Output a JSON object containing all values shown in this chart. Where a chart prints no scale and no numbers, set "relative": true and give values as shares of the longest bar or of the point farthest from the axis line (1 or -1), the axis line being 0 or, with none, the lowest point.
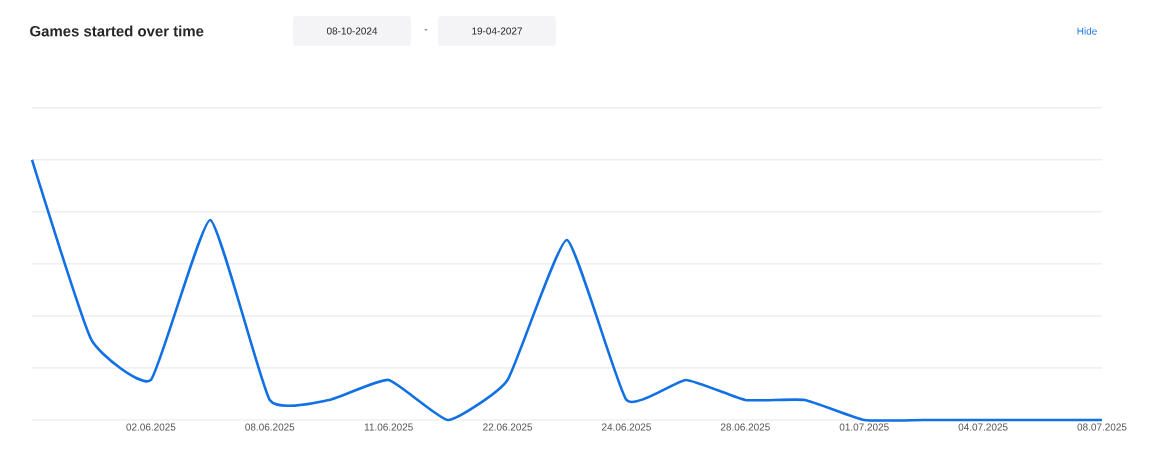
{
  "chart_data": {
    "type": "line",
    "title": "Games started over time",
    "annotations": [
      "08-10-2024",
      "-",
      "19-04-2027",
      "Hide"
    ],
    "categories": [
      null,
      null,
      "02.06.2025",
      null,
      "08.06.2025",
      null,
      "11.06.2025",
      null,
      "22.06.2025",
      null,
      "24.06.2025",
      null,
      "28.06.2025",
      null,
      "01.07.2025",
      null,
      "04.07.2025",
      null,
      "08.07.2025"
    ],
    "relative": true,
    "series": [
      {
        "color": "#1170e4",
        "values": [
          1,
          0.308,
          0.154,
          0.769,
          0.077,
          0.077,
          0.154,
          0,
          0.154,
          0.692,
          0.077,
          0.154,
          0.077,
          0.077,
          0,
          0,
          0,
          0,
          0
        ]
      }
    ],
    "grid": "y",
    "marker": "none",
    "line_style": "solid"
  }
}
